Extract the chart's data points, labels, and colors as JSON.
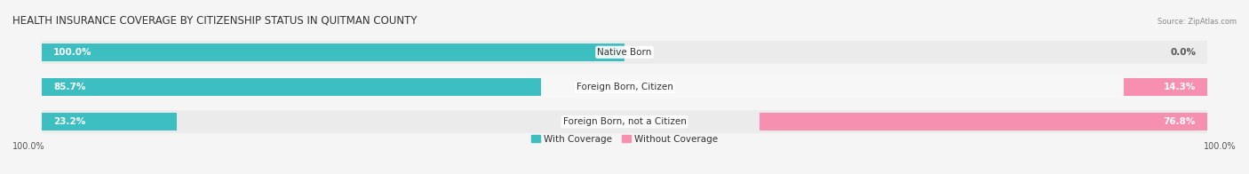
{
  "title": "HEALTH INSURANCE COVERAGE BY CITIZENSHIP STATUS IN QUITMAN COUNTY",
  "source": "Source: ZipAtlas.com",
  "categories": [
    "Native Born",
    "Foreign Born, Citizen",
    "Foreign Born, not a Citizen"
  ],
  "with_coverage": [
    100.0,
    85.7,
    23.2
  ],
  "without_coverage": [
    0.0,
    14.3,
    76.8
  ],
  "color_with": "#3dbec0",
  "color_without": "#f78fb0",
  "color_with_light": "#a8dfe0",
  "color_without_light": "#fbc8d8",
  "row_bg_even": "#ebebeb",
  "row_bg_odd": "#f7f7f7",
  "fig_bg": "#f5f5f5",
  "title_fontsize": 8.5,
  "label_fontsize": 7.5,
  "value_fontsize": 7.5,
  "tick_fontsize": 7.0,
  "bar_height": 0.52,
  "figsize": [
    14.06,
    1.96
  ],
  "dpi": 100,
  "legend_label_with": "With Coverage",
  "legend_label_without": "Without Coverage",
  "x_left_label": "100.0%",
  "x_right_label": "100.0%"
}
